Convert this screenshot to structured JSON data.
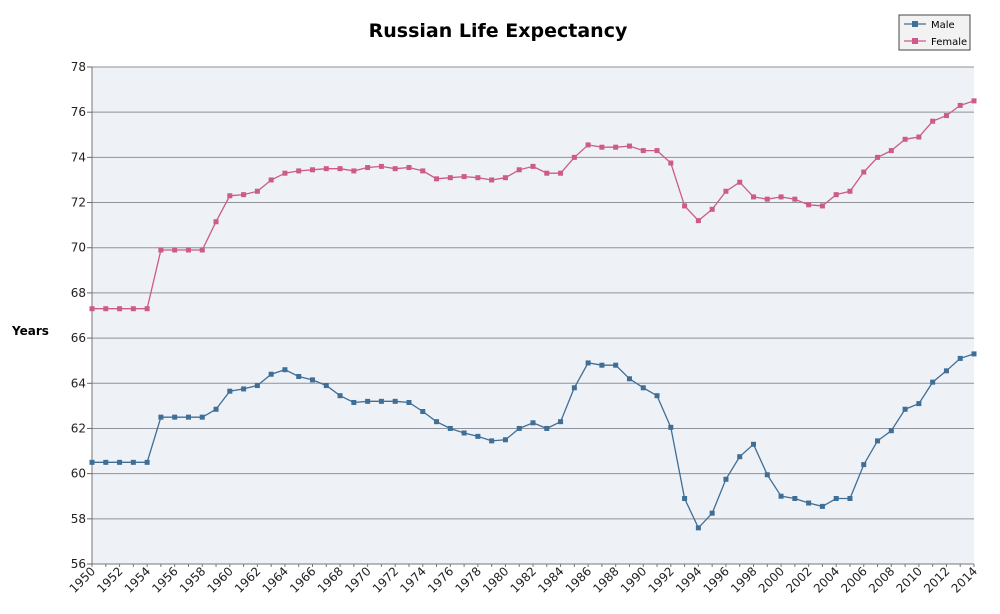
{
  "chart_data": {
    "type": "line",
    "title": "Russian Life Expectancy",
    "xlabel": "",
    "ylabel": "Years",
    "xlim": [
      1950,
      2014
    ],
    "ylim": [
      56,
      78
    ],
    "y_ticks": [
      56,
      58,
      60,
      62,
      64,
      66,
      68,
      70,
      72,
      74,
      76,
      78
    ],
    "x_ticks": [
      "1950",
      "1952",
      "1954",
      "1956",
      "1958",
      "1960",
      "1962",
      "1964",
      "1966",
      "1968",
      "1970",
      "1972",
      "1974",
      "1976",
      "1978",
      "1980",
      "1982",
      "1984",
      "1986",
      "1988",
      "1990",
      "1992",
      "1994",
      "1996",
      "1998",
      "2000",
      "2002",
      "2004",
      "2006",
      "2008",
      "2010",
      "2012",
      "2014"
    ],
    "grid": true,
    "legend_position": "top-right",
    "x": [
      1950,
      1951,
      1952,
      1953,
      1954,
      1955,
      1956,
      1957,
      1958,
      1959,
      1960,
      1961,
      1962,
      1963,
      1964,
      1965,
      1966,
      1967,
      1968,
      1969,
      1970,
      1971,
      1972,
      1973,
      1974,
      1975,
      1976,
      1977,
      1978,
      1979,
      1980,
      1981,
      1982,
      1983,
      1984,
      1985,
      1986,
      1987,
      1988,
      1989,
      1990,
      1991,
      1992,
      1993,
      1994,
      1995,
      1996,
      1997,
      1998,
      1999,
      2000,
      2001,
      2002,
      2003,
      2004,
      2005,
      2006,
      2007,
      2008,
      2009,
      2010,
      2011,
      2012,
      2013,
      2014
    ],
    "series": [
      {
        "name": "Male",
        "color": "#3f6e96",
        "values": [
          60.5,
          60.5,
          60.5,
          60.5,
          60.5,
          62.5,
          62.5,
          62.5,
          62.5,
          62.85,
          63.65,
          63.75,
          63.9,
          64.4,
          64.6,
          64.3,
          64.15,
          63.9,
          63.45,
          63.15,
          63.2,
          63.2,
          63.2,
          63.15,
          62.75,
          62.3,
          62.0,
          61.8,
          61.65,
          61.45,
          61.5,
          62.0,
          62.25,
          62.0,
          62.3,
          63.8,
          64.9,
          64.8,
          64.8,
          64.2,
          63.8,
          63.45,
          62.05,
          58.9,
          57.6,
          58.25,
          59.75,
          60.75,
          61.3,
          59.95,
          59.0,
          58.9,
          58.7,
          58.55,
          58.9,
          58.9,
          60.4,
          61.45,
          61.9,
          62.85,
          63.1,
          64.05,
          64.55,
          65.1,
          65.3
        ]
      },
      {
        "name": "Female",
        "color": "#cc5b8a",
        "values": [
          67.3,
          67.3,
          67.3,
          67.3,
          67.3,
          69.9,
          69.9,
          69.9,
          69.9,
          71.15,
          72.3,
          72.35,
          72.5,
          73.0,
          73.3,
          73.4,
          73.45,
          73.5,
          73.5,
          73.4,
          73.55,
          73.6,
          73.5,
          73.55,
          73.4,
          73.05,
          73.1,
          73.15,
          73.1,
          73.0,
          73.1,
          73.45,
          73.6,
          73.3,
          73.3,
          74.0,
          74.55,
          74.45,
          74.45,
          74.5,
          74.3,
          74.3,
          73.75,
          71.85,
          71.2,
          71.7,
          72.5,
          72.9,
          72.25,
          72.15,
          72.25,
          72.15,
          71.9,
          71.85,
          72.35,
          72.5,
          73.35,
          74.0,
          74.3,
          74.8,
          74.9,
          75.6,
          75.85,
          76.3,
          76.5
        ]
      }
    ]
  }
}
